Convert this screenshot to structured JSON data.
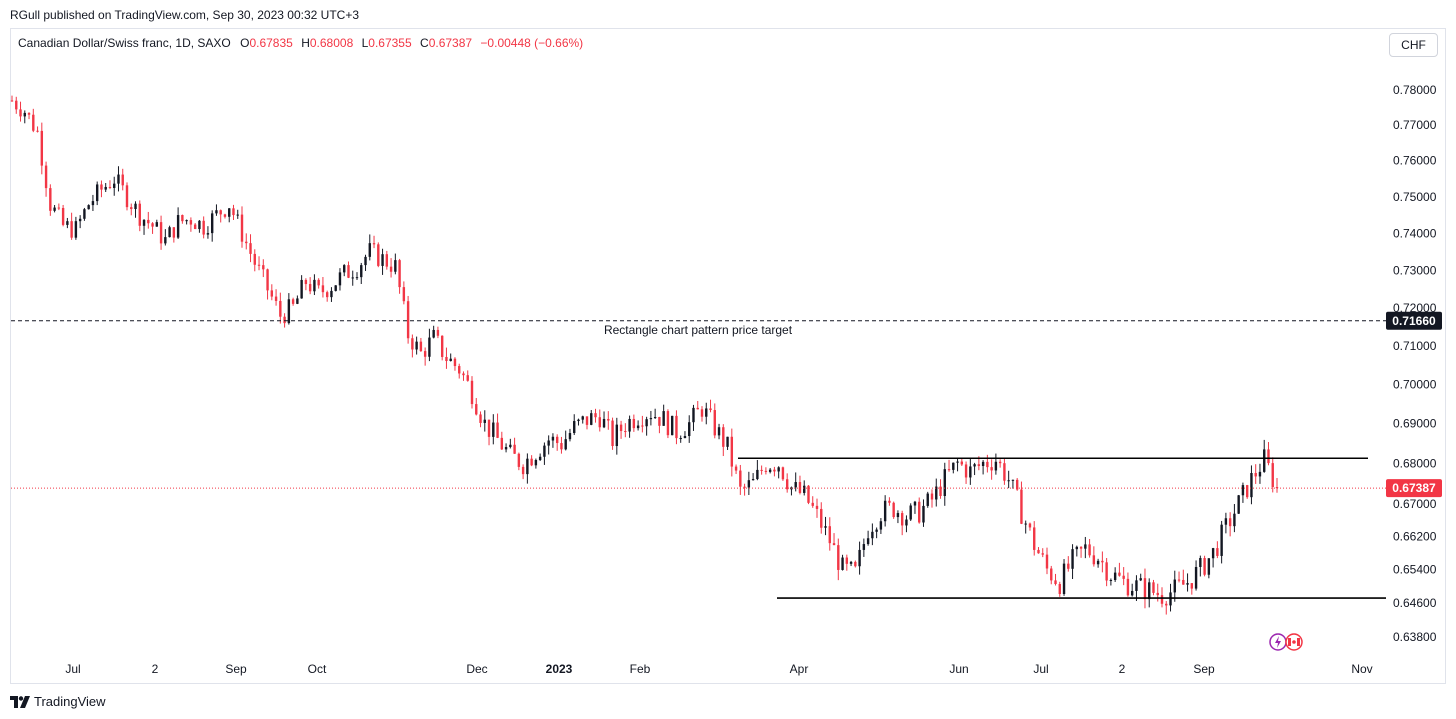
{
  "header": {
    "published_line": "RGull published on TradingView.com, Sep 30, 2023 00:32 UTC+3"
  },
  "legend": {
    "symbol": "Canadian Dollar/Swiss franc, 1D, SAXO",
    "open_label": "O",
    "open": "0.67835",
    "high_label": "H",
    "high": "0.68008",
    "low_label": "L",
    "low": "0.67355",
    "close_label": "C",
    "close": "0.67387",
    "change": "−0.00448 (−0.66%)"
  },
  "currency_button": "CHF",
  "footer": {
    "brand": "TradingView"
  },
  "colors": {
    "up": "#131722",
    "down": "#f23645",
    "last_price": "#f23645",
    "target_label_bg": "#131722"
  },
  "icons": [
    "tradingview-logo-icon",
    "flash-icon",
    "canada-flag-icon"
  ],
  "chart_data": {
    "type": "candlestick",
    "instrument": "CADCHF",
    "price_axis": {
      "ticks": [
        "0.78000",
        "0.77000",
        "0.76000",
        "0.75000",
        "0.74000",
        "0.73000",
        "0.72000",
        "0.71000",
        "0.70000",
        "0.69000",
        "0.68000",
        "0.67000",
        "0.66200",
        "0.65400",
        "0.64600",
        "0.63800"
      ],
      "scale": "log",
      "range": [
        0.636,
        0.79
      ]
    },
    "time_axis": {
      "ticks": [
        {
          "label": "Jul",
          "bold": false
        },
        {
          "label": "2",
          "bold": false
        },
        {
          "label": "Sep",
          "bold": false
        },
        {
          "label": "Oct",
          "bold": false
        },
        {
          "label": "Dec",
          "bold": false
        },
        {
          "label": "2023",
          "bold": true
        },
        {
          "label": "Feb",
          "bold": false
        },
        {
          "label": "Apr",
          "bold": false
        },
        {
          "label": "Jun",
          "bold": false
        },
        {
          "label": "Jul",
          "bold": false
        },
        {
          "label": "2",
          "bold": false
        },
        {
          "label": "Sep",
          "bold": false
        },
        {
          "label": "Nov",
          "bold": false
        }
      ]
    },
    "price_path": [
      0.777,
      0.774,
      0.768,
      0.748,
      0.742,
      0.741,
      0.748,
      0.752,
      0.755,
      0.75,
      0.745,
      0.742,
      0.738,
      0.743,
      0.744,
      0.742,
      0.745,
      0.748,
      0.74,
      0.732,
      0.725,
      0.718,
      0.72,
      0.727,
      0.724,
      0.726,
      0.729,
      0.731,
      0.735,
      0.733,
      0.731,
      0.713,
      0.708,
      0.712,
      0.707,
      0.704,
      0.698,
      0.69,
      0.686,
      0.682,
      0.68,
      0.683,
      0.686,
      0.685,
      0.689,
      0.691,
      0.692,
      0.686,
      0.69,
      0.692,
      0.693,
      0.691,
      0.688,
      0.69,
      0.694,
      0.689,
      0.684,
      0.673,
      0.675,
      0.68,
      0.68,
      0.674,
      0.672,
      0.667,
      0.661,
      0.654,
      0.653,
      0.664,
      0.668,
      0.669,
      0.667,
      0.668,
      0.671,
      0.676,
      0.68,
      0.678,
      0.68,
      0.681,
      0.676,
      0.668,
      0.66,
      0.654,
      0.651,
      0.656,
      0.659,
      0.657,
      0.653,
      0.651,
      0.65,
      0.649,
      0.648,
      0.649,
      0.651,
      0.654,
      0.658,
      0.664,
      0.67,
      0.676,
      0.681,
      0.6739
    ],
    "horizontal_lines": [
      {
        "name": "resistance",
        "price": 0.6813,
        "style": "solid"
      },
      {
        "name": "support",
        "price": 0.6472,
        "style": "solid"
      },
      {
        "name": "target",
        "price": 0.7166,
        "style": "dashed"
      }
    ],
    "annotations": [
      "Rectangle chart pattern price target"
    ],
    "price_labels": [
      {
        "value": "0.71660",
        "kind": "target"
      },
      {
        "value": "0.67387",
        "kind": "last"
      }
    ],
    "last_price": 0.67387
  }
}
